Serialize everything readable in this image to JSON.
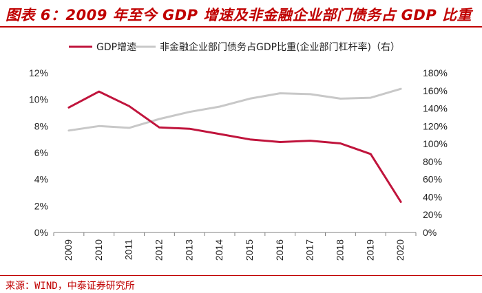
{
  "title": "图表 6：2009 年至今 GDP 增速及非金融企业部门债务占 GDP 比重",
  "source": "来源：WIND，中泰证券研究所",
  "colors": {
    "accent": "#c00000",
    "series1": "#c0143c",
    "series2": "#c8c8c8"
  },
  "chart_data": {
    "type": "line",
    "title": "2009 年至今 GDP 增速及非金融企业部门债务占 GDP 比重",
    "categories": [
      "2009",
      "2010",
      "2011",
      "2012",
      "2013",
      "2014",
      "2015",
      "2016",
      "2017",
      "2018",
      "2019",
      "2020"
    ],
    "series": [
      {
        "name": "GDP增速",
        "axis": "left",
        "values": [
          9.4,
          10.6,
          9.5,
          7.9,
          7.8,
          7.4,
          7.0,
          6.8,
          6.9,
          6.7,
          5.9,
          2.3
        ]
      },
      {
        "name": "非金融企业部门债务占GDP比重(企业部门杠杆率)（右）",
        "axis": "right",
        "values": [
          115,
          120,
          118,
          128,
          136,
          142,
          151,
          157,
          156,
          151,
          152,
          162
        ]
      }
    ],
    "yleft": {
      "min": 0,
      "max": 12,
      "step": 2,
      "suffix": "%",
      "ticks": [
        "0%",
        "2%",
        "4%",
        "6%",
        "8%",
        "10%",
        "12%"
      ]
    },
    "yright": {
      "min": 0,
      "max": 180,
      "step": 20,
      "suffix": "%",
      "ticks": [
        "0%",
        "20%",
        "40%",
        "60%",
        "80%",
        "100%",
        "120%",
        "140%",
        "160%",
        "180%"
      ]
    },
    "legend_position": "top"
  }
}
